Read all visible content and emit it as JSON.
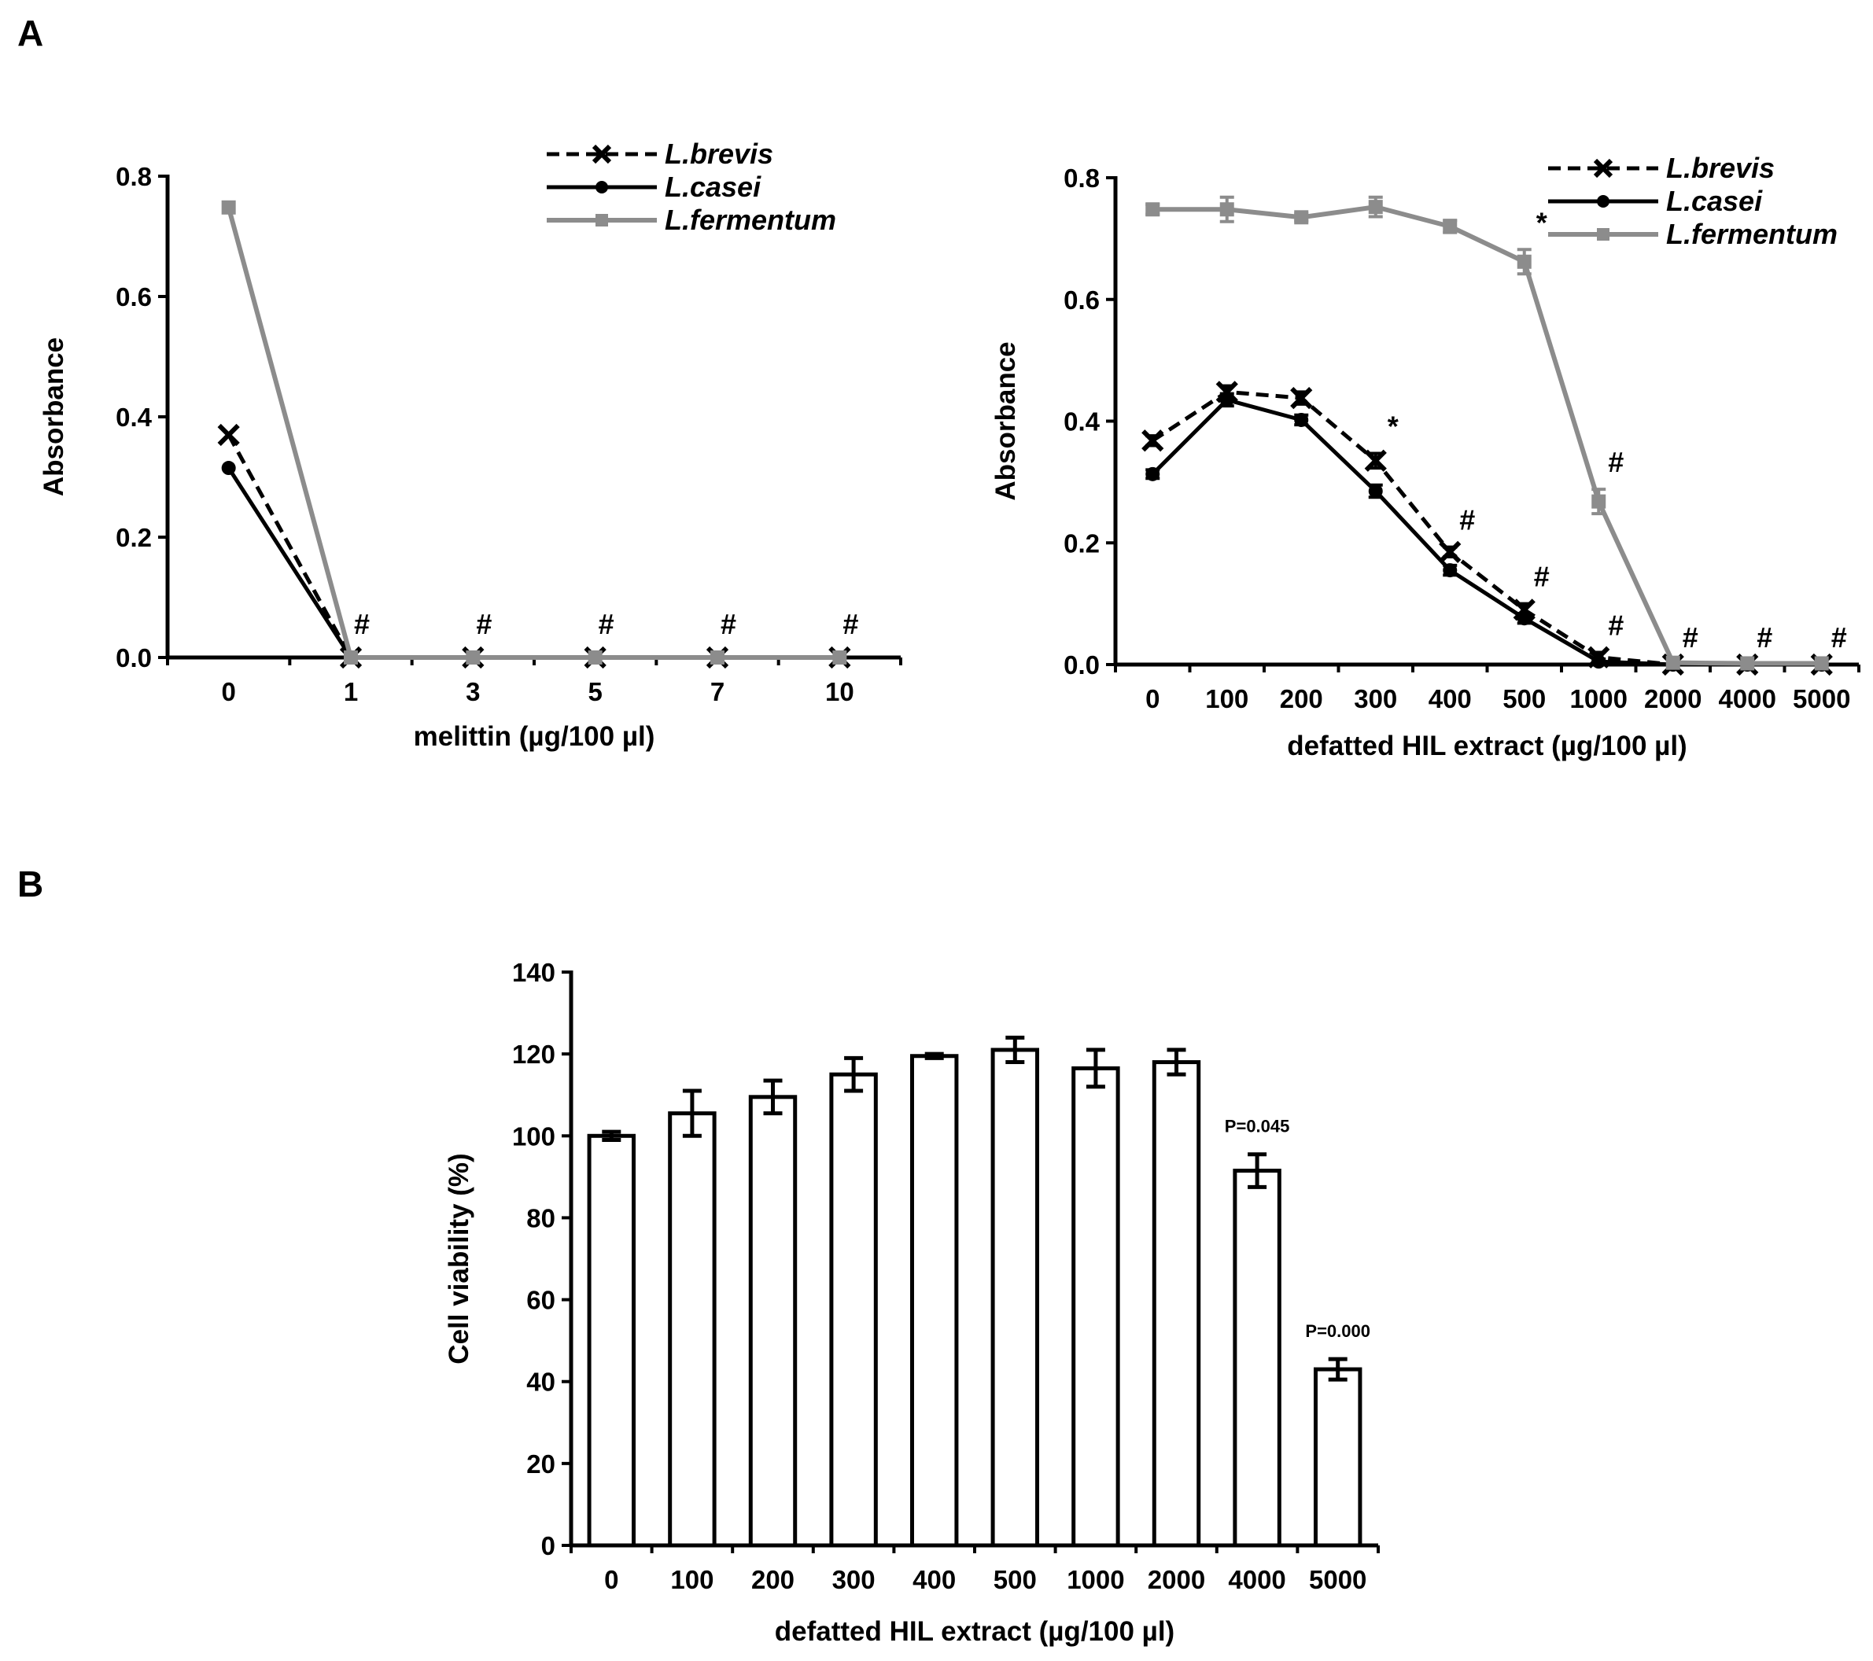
{
  "panels": {
    "a_label": "A",
    "b_label": "B"
  },
  "colors": {
    "brevis": "#000000",
    "casei": "#000000",
    "fermentum": "#8c8c8c",
    "bar_fill": "#ffffff",
    "axis": "#000000"
  },
  "chart_data": [
    {
      "type": "line",
      "panel": "A-left",
      "title": "",
      "xlabel": "melittin (µg/100 µl)",
      "ylabel": "Absorbance",
      "categories": [
        "0",
        "1",
        "3",
        "5",
        "7",
        "10"
      ],
      "ylim": [
        0,
        0.8
      ],
      "yticks": [
        "0.0",
        "0.2",
        "0.4",
        "0.6",
        "0.8"
      ],
      "series": [
        {
          "name": "L.brevis",
          "style": "dashed",
          "marker": "x",
          "values": [
            0.37,
            0,
            0,
            0,
            0,
            0
          ]
        },
        {
          "name": "L.casei",
          "style": "solid",
          "marker": "circle",
          "values": [
            0.315,
            0,
            0,
            0,
            0,
            0
          ]
        },
        {
          "name": "L.fermentum",
          "style": "gray",
          "marker": "square",
          "values": [
            0.748,
            0,
            0,
            0,
            0,
            0
          ]
        }
      ],
      "annotations": [
        "",
        "#",
        "#",
        "#",
        "#",
        "#"
      ],
      "legend_position": "top-right"
    },
    {
      "type": "line",
      "panel": "A-right",
      "title": "",
      "xlabel": "defatted HIL extract (µg/100 µl)",
      "ylabel": "Absorbance",
      "categories": [
        "0",
        "100",
        "200",
        "300",
        "400",
        "500",
        "1000",
        "2000",
        "4000",
        "5000"
      ],
      "ylim": [
        0,
        0.8
      ],
      "yticks": [
        "0.0",
        "0.2",
        "0.4",
        "0.6",
        "0.8"
      ],
      "series": [
        {
          "name": "L.brevis",
          "style": "dashed",
          "marker": "x",
          "values": [
            0.368,
            0.448,
            0.438,
            0.335,
            0.185,
            0.09,
            0.012,
            0.0,
            0.0,
            0.0
          ],
          "errors": [
            0.008,
            0.01,
            0.01,
            0.012,
            0.008,
            0.01,
            0.008,
            0.0,
            0.0,
            0.0
          ]
        },
        {
          "name": "L.casei",
          "style": "solid",
          "marker": "circle",
          "values": [
            0.313,
            0.435,
            0.402,
            0.285,
            0.155,
            0.076,
            0.005,
            0.0,
            0.0,
            0.0
          ],
          "errors": [
            0.007,
            0.01,
            0.008,
            0.01,
            0.008,
            0.008,
            0.004,
            0.0,
            0.0,
            0.0
          ]
        },
        {
          "name": "L.fermentum",
          "style": "gray",
          "marker": "square",
          "values": [
            0.748,
            0.748,
            0.735,
            0.752,
            0.72,
            0.662,
            0.268,
            0.003,
            0.002,
            0.002
          ],
          "errors": [
            0.008,
            0.02,
            0.006,
            0.016,
            0.01,
            0.02,
            0.02,
            0.0,
            0.0,
            0.0
          ]
        }
      ],
      "annotations": [
        "",
        "",
        "",
        "*",
        "#",
        "#",
        "#",
        "#",
        "#",
        "#"
      ],
      "annotation_upper": [
        "",
        "",
        "",
        "",
        "",
        "*",
        "#",
        "",
        "",
        ""
      ],
      "legend_position": "top-right"
    },
    {
      "type": "bar",
      "panel": "B",
      "title": "",
      "xlabel": "defatted HIL extract (µg/100 µl)",
      "ylabel": "Cell viability (%)",
      "categories": [
        "0",
        "100",
        "200",
        "300",
        "400",
        "500",
        "1000",
        "2000",
        "4000",
        "5000"
      ],
      "values": [
        100,
        105.5,
        109.5,
        115,
        119.5,
        121,
        116.5,
        118,
        91.5,
        43
      ],
      "errors": [
        1.0,
        5.5,
        4.0,
        4.0,
        0.5,
        3.0,
        4.5,
        3.0,
        4.0,
        2.5
      ],
      "ylim": [
        0,
        140
      ],
      "yticks": [
        "0",
        "20",
        "40",
        "60",
        "80",
        "100",
        "120",
        "140"
      ],
      "annotations": [
        "",
        "",
        "",
        "",
        "",
        "",
        "",
        "",
        "P=0.045",
        "P=0.000"
      ]
    }
  ]
}
